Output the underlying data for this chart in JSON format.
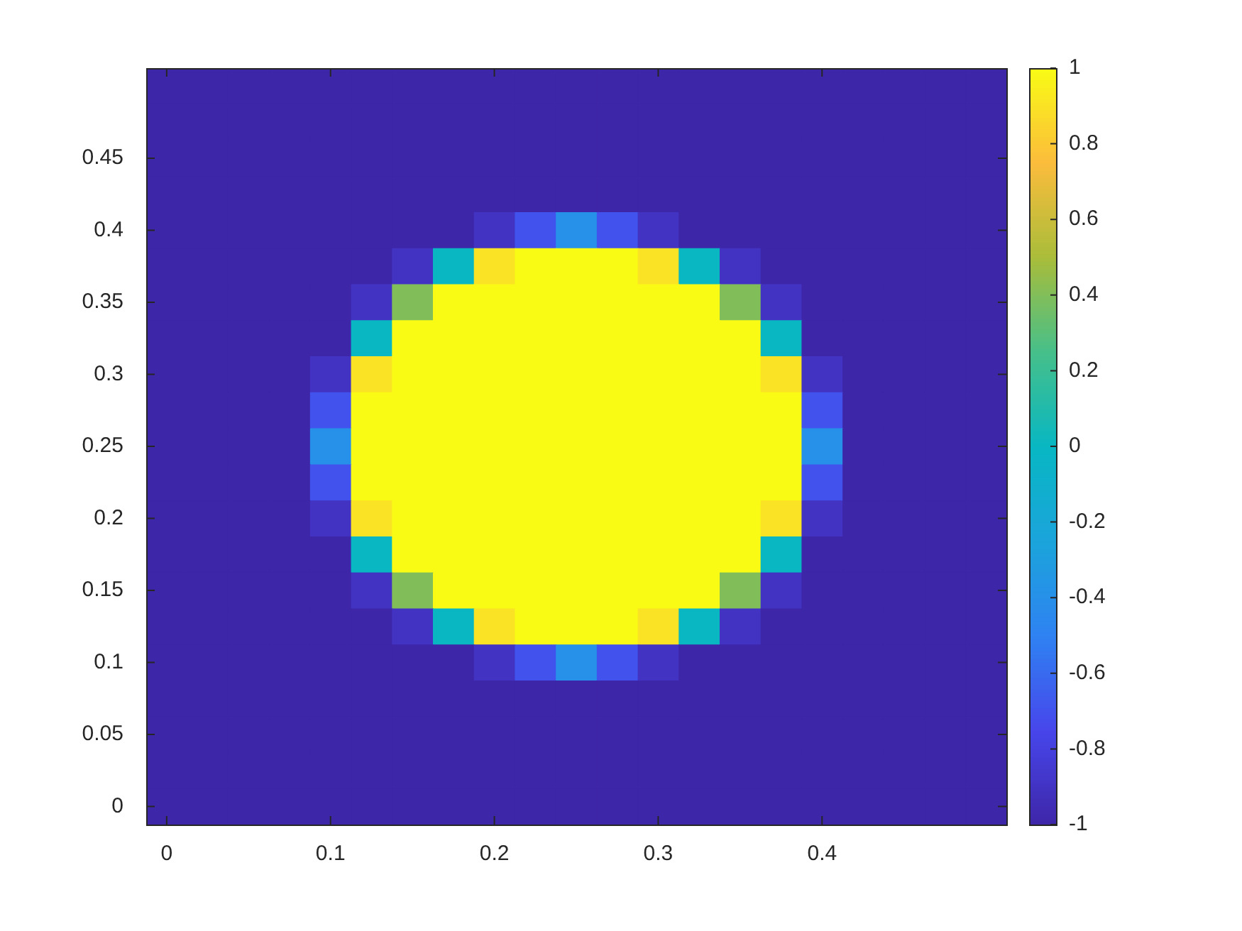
{
  "chart_data": {
    "type": "heatmap",
    "categories": [
      "0",
      null,
      null,
      null,
      "0.1",
      null,
      null,
      null,
      "0.2",
      null,
      null,
      null,
      "0.3",
      null,
      null,
      null,
      "0.4",
      null,
      null,
      null,
      null
    ],
    "y_categories": [
      null,
      null,
      "0.45",
      null,
      "0.4",
      null,
      "0.35",
      null,
      "0.3",
      null,
      "0.25",
      null,
      "0.2",
      null,
      "0.15",
      null,
      "0.1",
      null,
      "0.05",
      null,
      "0"
    ],
    "clim": [
      -1,
      1
    ],
    "cticks": [
      -1,
      -0.8,
      -0.6,
      -0.4,
      -0.2,
      0,
      0.2,
      0.4,
      0.6,
      0.8,
      1
    ],
    "cells": [
      [
        -1,
        -1,
        -1,
        -1,
        -1,
        -1,
        -1,
        -1,
        -1,
        -1,
        -1,
        -1,
        -1,
        -1,
        -1,
        -1,
        -1,
        -1,
        -1,
        -1,
        -1
      ],
      [
        -1,
        -1,
        -1,
        -1,
        -1,
        -1,
        -1,
        -1,
        -1,
        -1,
        -1,
        -1,
        -1,
        -1,
        -1,
        -1,
        -1,
        -1,
        -1,
        -1,
        -1
      ],
      [
        -1,
        -1,
        -1,
        -1,
        -1,
        -1,
        -1,
        -1,
        -1,
        -1,
        -1,
        -1,
        -1,
        -1,
        -1,
        -1,
        -1,
        -1,
        -1,
        -1,
        -1
      ],
      [
        -1,
        -1,
        -1,
        -1,
        -1,
        -1,
        -1,
        -1,
        -1,
        -1,
        -1,
        -1,
        -1,
        -1,
        -1,
        -1,
        -1,
        -1,
        -1,
        -1,
        -1
      ],
      [
        -1,
        -1,
        -1,
        -1,
        -1,
        -1,
        -1,
        -1,
        -0.9,
        -0.7,
        -0.4,
        -0.7,
        -0.9,
        -1,
        -1,
        -1,
        -1,
        -1,
        -1,
        -1,
        -1
      ],
      [
        -1,
        -1,
        -1,
        -1,
        -1,
        -1,
        -0.9,
        0,
        0.9,
        1,
        1,
        1,
        0.9,
        0,
        -0.9,
        -1,
        -1,
        -1,
        -1,
        -1,
        -1
      ],
      [
        -1,
        -1,
        -1,
        -1,
        -1,
        -0.9,
        0.4,
        1,
        1,
        1,
        1,
        1,
        1,
        1,
        0.4,
        -0.9,
        -1,
        -1,
        -1,
        -1,
        -1
      ],
      [
        -1,
        -1,
        -1,
        -1,
        -1,
        0,
        1,
        1,
        1,
        1,
        1,
        1,
        1,
        1,
        1,
        0,
        -1,
        -1,
        -1,
        -1,
        -1
      ],
      [
        -1,
        -1,
        -1,
        -1,
        -0.9,
        0.9,
        1,
        1,
        1,
        1,
        1,
        1,
        1,
        1,
        1,
        0.9,
        -0.9,
        -1,
        -1,
        -1,
        -1
      ],
      [
        -1,
        -1,
        -1,
        -1,
        -0.7,
        1,
        1,
        1,
        1,
        1,
        1,
        1,
        1,
        1,
        1,
        1,
        -0.7,
        -1,
        -1,
        -1,
        -1
      ],
      [
        -1,
        -1,
        -1,
        -1,
        -0.4,
        1,
        1,
        1,
        1,
        1,
        1,
        1,
        1,
        1,
        1,
        1,
        -0.4,
        -1,
        -1,
        -1,
        -1
      ],
      [
        -1,
        -1,
        -1,
        -1,
        -0.7,
        1,
        1,
        1,
        1,
        1,
        1,
        1,
        1,
        1,
        1,
        1,
        -0.7,
        -1,
        -1,
        -1,
        -1
      ],
      [
        -1,
        -1,
        -1,
        -1,
        -0.9,
        0.9,
        1,
        1,
        1,
        1,
        1,
        1,
        1,
        1,
        1,
        0.9,
        -0.9,
        -1,
        -1,
        -1,
        -1
      ],
      [
        -1,
        -1,
        -1,
        -1,
        -1,
        0,
        1,
        1,
        1,
        1,
        1,
        1,
        1,
        1,
        1,
        0,
        -1,
        -1,
        -1,
        -1,
        -1
      ],
      [
        -1,
        -1,
        -1,
        -1,
        -1,
        -0.9,
        0.4,
        1,
        1,
        1,
        1,
        1,
        1,
        1,
        0.4,
        -0.9,
        -1,
        -1,
        -1,
        -1,
        -1
      ],
      [
        -1,
        -1,
        -1,
        -1,
        -1,
        -1,
        -0.9,
        0,
        0.9,
        1,
        1,
        1,
        0.9,
        0,
        -0.9,
        -1,
        -1,
        -1,
        -1,
        -1,
        -1
      ],
      [
        -1,
        -1,
        -1,
        -1,
        -1,
        -1,
        -1,
        -1,
        -0.9,
        -0.7,
        -0.4,
        -0.7,
        -0.9,
        -1,
        -1,
        -1,
        -1,
        -1,
        -1,
        -1,
        -1
      ],
      [
        -1,
        -1,
        -1,
        -1,
        -1,
        -1,
        -1,
        -1,
        -1,
        -1,
        -1,
        -1,
        -1,
        -1,
        -1,
        -1,
        -1,
        -1,
        -1,
        -1,
        -1
      ],
      [
        -1,
        -1,
        -1,
        -1,
        -1,
        -1,
        -1,
        -1,
        -1,
        -1,
        -1,
        -1,
        -1,
        -1,
        -1,
        -1,
        -1,
        -1,
        -1,
        -1,
        -1
      ],
      [
        -1,
        -1,
        -1,
        -1,
        -1,
        -1,
        -1,
        -1,
        -1,
        -1,
        -1,
        -1,
        -1,
        -1,
        -1,
        -1,
        -1,
        -1,
        -1,
        -1,
        -1
      ],
      [
        -1,
        -1,
        -1,
        -1,
        -1,
        -1,
        -1,
        -1,
        -1,
        -1,
        -1,
        -1,
        -1,
        -1,
        -1,
        -1,
        -1,
        -1,
        -1,
        -1,
        -1
      ]
    ]
  }
}
